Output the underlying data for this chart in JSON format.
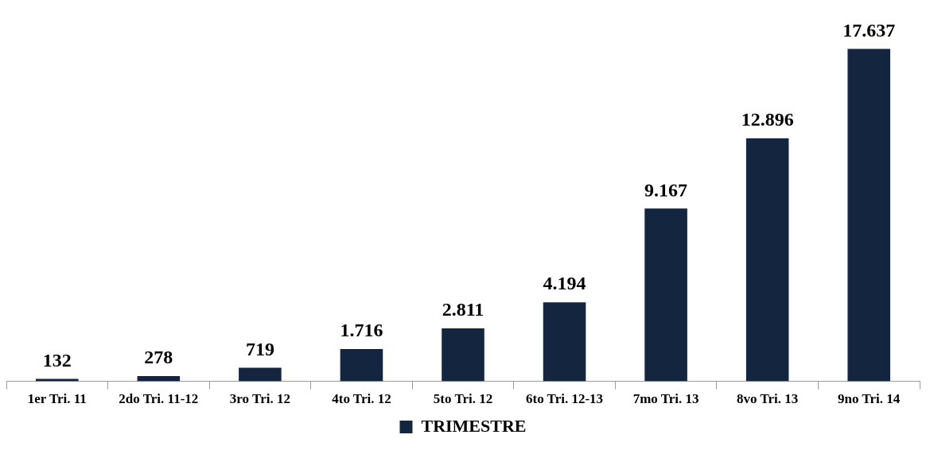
{
  "chart_data": {
    "type": "bar",
    "categories": [
      "1er Tri. 11",
      "2do Tri. 11-12",
      "3ro Tri. 12",
      "4to Tri. 12",
      "5to Tri. 12",
      "6to Tri. 12-13",
      "7mo Tri. 13",
      "8vo Tri. 13",
      "9no Tri. 14"
    ],
    "series": [
      {
        "name": "TRIMESTRE",
        "color": "#14253f",
        "values": [
          132,
          278,
          719,
          1716,
          2811,
          4194,
          9167,
          12896,
          17637
        ],
        "value_labels": [
          "132",
          "278",
          "719",
          "1.716",
          "2.811",
          "4.194",
          "9.167",
          "12.896",
          "17.637"
        ]
      }
    ],
    "legend": "bottom",
    "grid": false
  }
}
